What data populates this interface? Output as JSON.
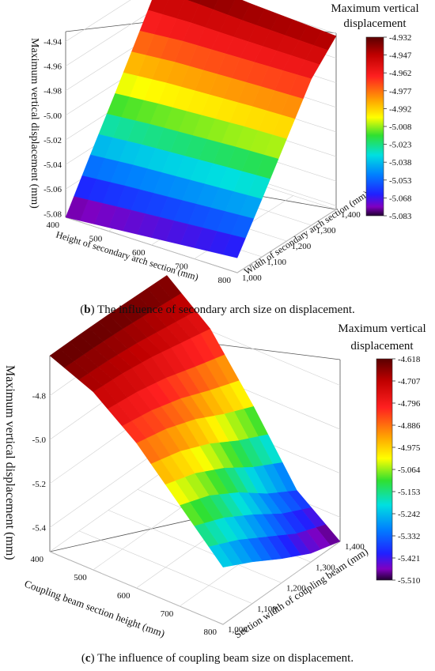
{
  "chart_data": [
    {
      "panel": "b",
      "type": "surface3d",
      "caption_letter": "b",
      "caption_text": " The influence of secondary arch size on displacement.",
      "zlabel": "Maximum vertical displacement (mm)",
      "xlabel": "Height of secondary arch section (mm)",
      "ylabel": "Width of secondary arch section (mm)",
      "x_ticks": [
        "400",
        "500",
        "600",
        "700",
        "800"
      ],
      "y_ticks": [
        "1,000",
        "1,100",
        "1,200",
        "1,300",
        "1,400"
      ],
      "z_ticks": [
        "-4.94",
        "-4.96",
        "-4.98",
        "-5.00",
        "-5.02",
        "-5.04",
        "-5.06",
        "-5.08"
      ],
      "zlim": [
        -5.083,
        -4.932
      ],
      "colorbar_title": [
        "Maximum vertical",
        "displacement"
      ],
      "colorbar_ticks": [
        "-4.932",
        "-4.947",
        "-4.962",
        "-4.977",
        "-4.992",
        "-5.008",
        "-5.023",
        "-5.038",
        "-5.053",
        "-5.068",
        "-5.083"
      ],
      "x": [
        400,
        500,
        600,
        700,
        800
      ],
      "y": [
        1000,
        1100,
        1200,
        1300,
        1400
      ],
      "z": [
        [
          -5.083,
          -5.045,
          -5.008,
          -4.97,
          -4.932
        ],
        [
          -5.08,
          -5.042,
          -5.005,
          -4.967,
          -4.935
        ],
        [
          -5.077,
          -5.04,
          -5.003,
          -4.966,
          -4.938
        ],
        [
          -5.074,
          -5.038,
          -5.001,
          -4.965,
          -4.94
        ],
        [
          -5.071,
          -5.036,
          -5.0,
          -4.964,
          -4.942
        ]
      ]
    },
    {
      "panel": "c",
      "type": "surface3d",
      "caption_letter": "c",
      "caption_text": " The influence of coupling beam size on displacement.",
      "zlabel": "Maximum vertical displacement (mm)",
      "xlabel": "Coupling beam section height (mm)",
      "ylabel": "Section width of coupling beam (mm)",
      "x_ticks": [
        "400",
        "500",
        "600",
        "700",
        "800"
      ],
      "y_ticks": [
        "1,000",
        "1,100",
        "1,200",
        "1,300",
        "1,400"
      ],
      "z_ticks": [
        "-4.8",
        "-5.0",
        "-5.2",
        "-5.4"
      ],
      "zlim": [
        -5.51,
        -4.618
      ],
      "colorbar_title": [
        "Maximum vertical",
        "displacement"
      ],
      "colorbar_ticks": [
        "-4.618",
        "-4.707",
        "-4.796",
        "-4.886",
        "-4.975",
        "-5.064",
        "-5.153",
        "-5.242",
        "-5.332",
        "-5.421",
        "-5.510"
      ],
      "x": [
        400,
        500,
        600,
        700,
        800
      ],
      "y": [
        1000,
        1100,
        1200,
        1300,
        1400
      ],
      "z": [
        [
          -4.618,
          -4.618,
          -4.62,
          -4.625,
          -4.63
        ],
        [
          -4.7,
          -4.71,
          -4.73,
          -4.76,
          -4.79
        ],
        [
          -4.85,
          -4.88,
          -4.93,
          -5.0,
          -5.06
        ],
        [
          -5.05,
          -5.1,
          -5.18,
          -5.28,
          -5.36
        ],
        [
          -5.25,
          -5.32,
          -5.4,
          -5.47,
          -5.51
        ]
      ]
    }
  ]
}
